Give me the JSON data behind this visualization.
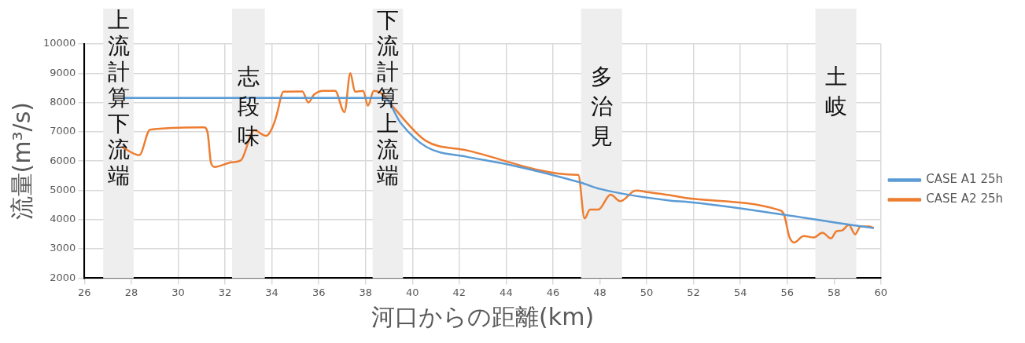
{
  "chart_data": {
    "type": "line",
    "xlabel": "河口からの距離(km)",
    "ylabel": "流量(m³/s)",
    "xlim": [
      26,
      60
    ],
    "xticks": [
      26,
      28,
      30,
      32,
      34,
      36,
      38,
      40,
      42,
      44,
      46,
      48,
      50,
      52,
      54,
      56,
      58,
      60
    ],
    "ylim": [
      2000,
      10000
    ],
    "yticks": [
      2000,
      3000,
      4000,
      5000,
      6000,
      7000,
      8000,
      9000,
      10000
    ],
    "grid": true,
    "legend": "right",
    "marker": "none",
    "line_style": "solid",
    "series": [
      {
        "name": "CASE A1 25h",
        "color": "#5b9bd5",
        "x": [
          27.7,
          38.8,
          39.5,
          40.6,
          42.3,
          44,
          47.2,
          48,
          51.1,
          51.67,
          55.85,
          58.7,
          59.7
        ],
        "values": [
          8160,
          8160,
          7300,
          6480,
          6150,
          5900,
          5260,
          5050,
          4640,
          4610,
          4170,
          3820,
          3710
        ]
      },
      {
        "name": "CASE A2 25h",
        "color": "#ed7d31",
        "x": [
          27.6,
          28.34,
          28.8,
          31.1,
          31.26,
          31.4,
          31.56,
          32.29,
          32.67,
          33.25,
          33.75,
          33.9,
          34.13,
          34.2,
          34.5,
          35.3,
          35.56,
          35.8,
          36.2,
          36.7,
          37.1,
          37.35,
          37.55,
          37.9,
          38.1,
          38.35,
          38.7,
          39.2,
          40.56,
          42.3,
          47.0,
          47.08,
          47.35,
          47.58,
          47.93,
          48.46,
          48.87,
          49.54,
          50.1,
          51.1,
          51.67,
          55.6,
          55.85,
          56.1,
          56.3,
          56.7,
          57.14,
          57.5,
          57.87,
          58.1,
          58.34,
          58.63,
          58.9,
          59.13,
          59.48,
          59.7
        ],
        "values": [
          6480,
          6200,
          7070,
          7150,
          6960,
          5940,
          5800,
          5960,
          6020,
          7050,
          6860,
          6960,
          7370,
          7560,
          8370,
          8380,
          8000,
          8270,
          8400,
          8400,
          7670,
          9000,
          8370,
          8400,
          7890,
          8400,
          8300,
          7830,
          6700,
          6370,
          5530,
          5530,
          4040,
          4340,
          4340,
          4850,
          4630,
          4990,
          4930,
          4820,
          4740,
          4340,
          4200,
          3390,
          3220,
          3440,
          3390,
          3550,
          3360,
          3600,
          3630,
          3820,
          3500,
          3770,
          3770,
          3710
        ]
      }
    ],
    "bands": [
      {
        "axis": "x",
        "from": 26.8,
        "to": 28.1,
        "label": "上流計算下流端",
        "color": "#eeeeee"
      },
      {
        "axis": "x",
        "from": 32.3,
        "to": 33.7,
        "label": "志段味",
        "color": "#eeeeee"
      },
      {
        "axis": "x",
        "from": 38.3,
        "to": 39.6,
        "label": "下流計算上流端",
        "color": "#eeeeee"
      },
      {
        "axis": "x",
        "from": 47.2,
        "to": 48.95,
        "label": "多治見",
        "color": "#eeeeee"
      },
      {
        "axis": "x",
        "from": 57.2,
        "to": 58.95,
        "label": "土岐",
        "color": "#eeeeee"
      }
    ]
  }
}
